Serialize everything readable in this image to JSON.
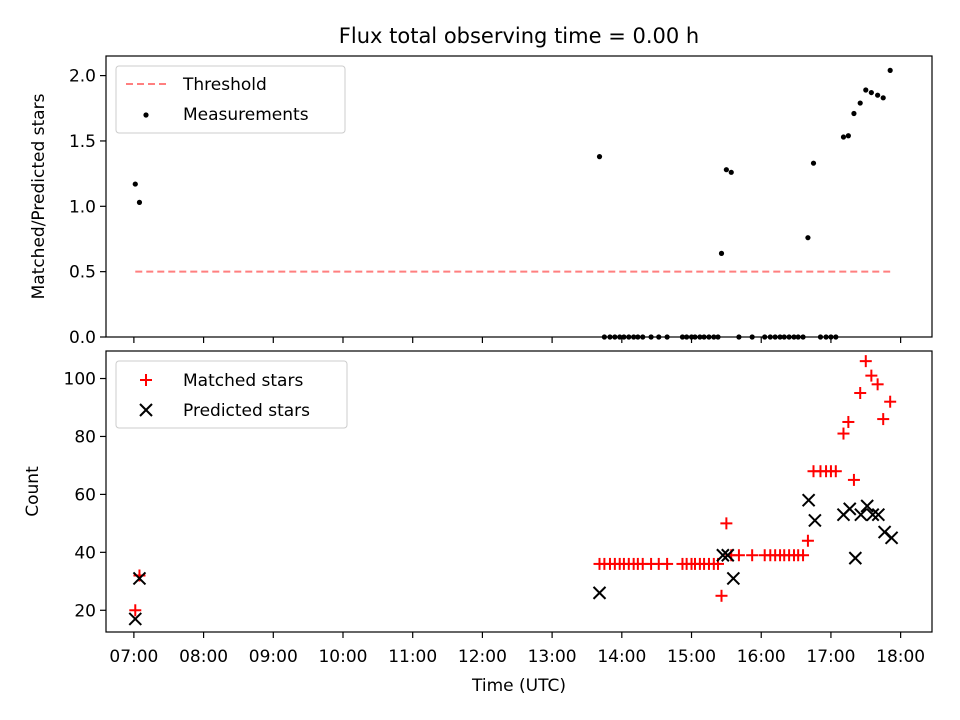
{
  "chart_data": [
    {
      "type": "scatter",
      "title": "Flux total observing time = 0.00 h",
      "xlabel": "",
      "ylabel": "Matched/Predicted stars",
      "ylim": [
        0,
        2.15
      ],
      "yticks": [
        0.0,
        0.5,
        1.0,
        1.5,
        2.0
      ],
      "ytick_labels": [
        "0.0",
        "0.5",
        "1.0",
        "1.5",
        "2.0"
      ],
      "xlim": [
        6.6,
        18.45
      ],
      "legend_position": "top-left",
      "series": [
        {
          "name": "Threshold",
          "kind": "line",
          "style": "dashed",
          "color": "#ff7f7f",
          "x": [
            7.02,
            17.85
          ],
          "y": [
            0.5,
            0.5
          ]
        },
        {
          "name": "Measurements",
          "kind": "scatter",
          "marker": "dot",
          "color": "#000000",
          "x": [
            7.02,
            7.08,
            13.68,
            13.75,
            13.83,
            13.9,
            13.97,
            14.03,
            14.1,
            14.17,
            14.23,
            14.3,
            14.42,
            14.53,
            14.65,
            14.87,
            14.93,
            15.0,
            15.05,
            15.12,
            15.18,
            15.25,
            15.32,
            15.38,
            15.43,
            15.5,
            15.57,
            15.68,
            15.87,
            16.05,
            16.13,
            16.2,
            16.27,
            16.33,
            16.4,
            16.47,
            16.53,
            16.6,
            16.67,
            16.75,
            16.85,
            16.93,
            17.0,
            17.07,
            17.18,
            17.25,
            17.33,
            17.42,
            17.5,
            17.58,
            17.67,
            17.75,
            17.85
          ],
          "y": [
            1.17,
            1.03,
            1.38,
            0.0,
            0.0,
            0.0,
            0.0,
            0.0,
            0.0,
            0.0,
            0.0,
            0.0,
            0.0,
            0.0,
            0.0,
            0.0,
            0.0,
            0.0,
            0.0,
            0.0,
            0.0,
            0.0,
            0.0,
            0.0,
            0.64,
            1.28,
            1.26,
            0.0,
            0.0,
            0.0,
            0.0,
            0.0,
            0.0,
            0.0,
            0.0,
            0.0,
            0.0,
            0.0,
            0.76,
            1.33,
            0.0,
            0.0,
            0.0,
            0.0,
            1.53,
            1.54,
            1.71,
            1.79,
            1.89,
            1.87,
            1.85,
            1.83,
            2.04
          ]
        }
      ]
    },
    {
      "type": "scatter",
      "title": "",
      "xlabel": "Time (UTC)",
      "ylabel": "Count",
      "ylim": [
        12.5,
        109.5
      ],
      "yticks": [
        20,
        40,
        60,
        80,
        100
      ],
      "ytick_labels": [
        "20",
        "40",
        "60",
        "80",
        "100"
      ],
      "xlim": [
        6.6,
        18.45
      ],
      "xticks": [
        7,
        8,
        9,
        10,
        11,
        12,
        13,
        14,
        15,
        16,
        17,
        18
      ],
      "xtick_labels": [
        "07:00",
        "08:00",
        "09:00",
        "10:00",
        "11:00",
        "12:00",
        "13:00",
        "14:00",
        "15:00",
        "16:00",
        "17:00",
        "18:00"
      ],
      "legend_position": "top-left",
      "series": [
        {
          "name": "Matched stars",
          "kind": "scatter",
          "marker": "plus",
          "color": "#ff0000",
          "x": [
            7.02,
            7.08,
            13.68,
            13.75,
            13.83,
            13.9,
            13.97,
            14.03,
            14.1,
            14.17,
            14.23,
            14.3,
            14.42,
            14.53,
            14.65,
            14.87,
            14.93,
            15.0,
            15.05,
            15.12,
            15.18,
            15.25,
            15.32,
            15.38,
            15.43,
            15.5,
            15.57,
            15.68,
            15.87,
            16.05,
            16.13,
            16.2,
            16.27,
            16.33,
            16.4,
            16.47,
            16.53,
            16.6,
            16.67,
            16.75,
            16.85,
            16.93,
            17.0,
            17.07,
            17.18,
            17.25,
            17.33,
            17.42,
            17.5,
            17.58,
            17.67,
            17.75,
            17.85
          ],
          "y": [
            20,
            32,
            36,
            36,
            36,
            36,
            36,
            36,
            36,
            36,
            36,
            36,
            36,
            36,
            36,
            36,
            36,
            36,
            36,
            36,
            36,
            36,
            36,
            36,
            25,
            50,
            39,
            39,
            39,
            39,
            39,
            39,
            39,
            39,
            39,
            39,
            39,
            39,
            44,
            68,
            68,
            68,
            68,
            68,
            81,
            85,
            65,
            95,
            106,
            101,
            98,
            86,
            92
          ]
        },
        {
          "name": "Predicted stars",
          "kind": "scatter",
          "marker": "x",
          "color": "#000000",
          "x": [
            7.02,
            7.08,
            13.68,
            15.45,
            15.52,
            15.6,
            16.68,
            16.77,
            17.18,
            17.27,
            17.35,
            17.43,
            17.52,
            17.6,
            17.68,
            17.77,
            17.87
          ],
          "y": [
            17,
            31,
            26,
            39,
            39,
            31,
            58,
            51,
            53,
            55,
            38,
            53,
            56,
            53,
            53,
            47,
            45
          ]
        }
      ]
    }
  ]
}
